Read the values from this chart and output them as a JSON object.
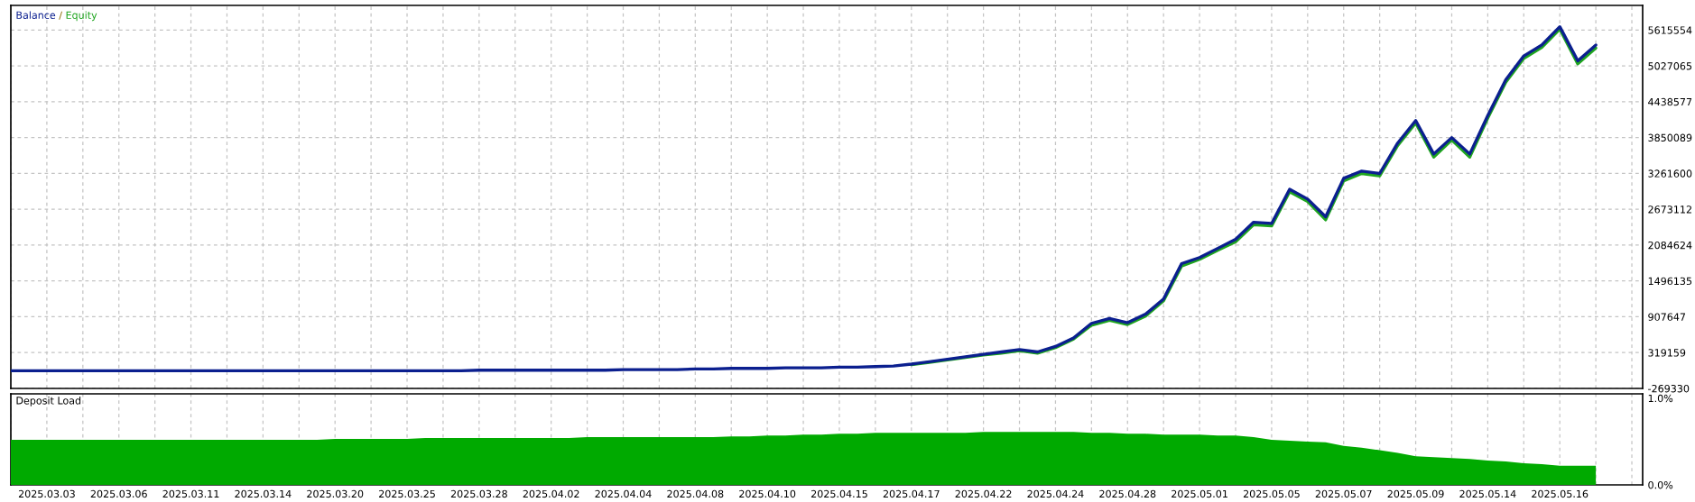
{
  "chart_data": [
    {
      "type": "line",
      "legend": "top left",
      "annotations": [
        "/"
      ],
      "grid": true,
      "tick_labels": "y",
      "categories": [
        null,
        null,
        "2025.03.03",
        null,
        null,
        null,
        "2025.03.06",
        null,
        null,
        null,
        "2025.03.11",
        null,
        null,
        null,
        "2025.03.14",
        null,
        null,
        null,
        "2025.03.20",
        null,
        null,
        null,
        "2025.03.25",
        null,
        null,
        null,
        "2025.03.28",
        null,
        null,
        null,
        "2025.04.02",
        null,
        null,
        null,
        "2025.04.04",
        null,
        null,
        null,
        "2025.04.08",
        null,
        null,
        null,
        "2025.04.10",
        null,
        null,
        null,
        "2025.04.15",
        null,
        null,
        null,
        "2025.04.17",
        null,
        null,
        null,
        "2025.04.22",
        null,
        null,
        null,
        "2025.04.24",
        null,
        null,
        null,
        "2025.04.28",
        null,
        null,
        null,
        "2025.05.01",
        null,
        null,
        null,
        "2025.05.05",
        null,
        null,
        null,
        "2025.05.07",
        null,
        null,
        null,
        "2025.05.09",
        null,
        null,
        null,
        "2025.05.14",
        null,
        null,
        null,
        "2025.05.16",
        null,
        null,
        null
      ],
      "ylim": [
        -269330,
        6020000
      ],
      "yticks": [
        -269330,
        319159,
        907647,
        1496135,
        2084624,
        2673112,
        3261600,
        3850089,
        4438577,
        5027065,
        5615554
      ],
      "series": [
        {
          "name": "Equity",
          "color": "#1fa51f",
          "values": [
            null,
            null,
            null,
            null,
            null,
            null,
            null,
            null,
            null,
            null,
            null,
            null,
            null,
            null,
            null,
            null,
            null,
            null,
            null,
            null,
            null,
            null,
            null,
            null,
            null,
            null,
            null,
            null,
            null,
            null,
            null,
            null,
            null,
            null,
            null,
            null,
            null,
            null,
            null,
            null,
            null,
            null,
            null,
            null,
            null,
            null,
            null,
            null,
            null,
            null,
            120000,
            160000,
            200000,
            240000,
            280000,
            310000,
            350000,
            310000,
            400000,
            540000,
            770000,
            850000,
            780000,
            920000,
            1170000,
            1740000,
            1850000,
            2000000,
            2140000,
            2420000,
            2400000,
            2960000,
            2800000,
            2500000,
            3140000,
            3260000,
            3220000,
            3720000,
            4090000,
            3530000,
            3810000,
            3530000,
            4170000,
            4760000,
            5150000,
            5330000,
            5630000,
            5060000,
            5320000,
            null
          ]
        },
        {
          "name": "Balance",
          "color": "#0b1f8f",
          "values": [
            20000,
            20000,
            20000,
            20000,
            20000,
            20000,
            20000,
            20000,
            20000,
            20000,
            20000,
            20000,
            20000,
            20000,
            20000,
            20000,
            20000,
            20000,
            20000,
            20000,
            20000,
            20000,
            20000,
            20000,
            20000,
            20000,
            30000,
            30000,
            30000,
            30000,
            30000,
            30000,
            30000,
            30000,
            40000,
            40000,
            40000,
            40000,
            50000,
            50000,
            60000,
            60000,
            60000,
            70000,
            70000,
            70000,
            80000,
            80000,
            90000,
            100000,
            130000,
            170000,
            210000,
            250000,
            290000,
            330000,
            370000,
            330000,
            420000,
            560000,
            800000,
            880000,
            810000,
            950000,
            1200000,
            1780000,
            1880000,
            2030000,
            2180000,
            2460000,
            2440000,
            3000000,
            2840000,
            2550000,
            3180000,
            3300000,
            3260000,
            3760000,
            4130000,
            3580000,
            3850000,
            3580000,
            4210000,
            4800000,
            5190000,
            5370000,
            5670000,
            5110000,
            5370000,
            null
          ]
        }
      ]
    },
    {
      "type": "area",
      "title": "Deposit Load",
      "grid": "x",
      "categories": [
        null,
        null,
        "2025.03.03",
        null,
        null,
        null,
        "2025.03.06",
        null,
        null,
        null,
        "2025.03.11",
        null,
        null,
        null,
        "2025.03.14",
        null,
        null,
        null,
        "2025.03.20",
        null,
        null,
        null,
        "2025.03.25",
        null,
        null,
        null,
        "2025.03.28",
        null,
        null,
        null,
        "2025.04.02",
        null,
        null,
        null,
        "2025.04.04",
        null,
        null,
        null,
        "2025.04.08",
        null,
        null,
        null,
        "2025.04.10",
        null,
        null,
        null,
        "2025.04.15",
        null,
        null,
        null,
        "2025.04.17",
        null,
        null,
        null,
        "2025.04.22",
        null,
        null,
        null,
        "2025.04.24",
        null,
        null,
        null,
        "2025.04.28",
        null,
        null,
        null,
        "2025.05.01",
        null,
        null,
        null,
        "2025.05.05",
        null,
        null,
        null,
        "2025.05.07",
        null,
        null,
        null,
        "2025.05.09",
        null,
        null,
        null,
        "2025.05.14",
        null,
        null,
        null,
        "2025.05.16",
        null,
        null,
        null
      ],
      "ylim": [
        0,
        1.05
      ],
      "yticks": [
        {
          "value": 0,
          "label": "0.0%"
        },
        {
          "value": 1,
          "label": "1.0%"
        }
      ],
      "series": [
        {
          "color": "#00aa00",
          "values": [
            0.52,
            0.52,
            0.52,
            0.52,
            0.52,
            0.52,
            0.52,
            0.52,
            0.52,
            0.52,
            0.52,
            0.52,
            0.52,
            0.52,
            0.52,
            0.52,
            0.52,
            0.52,
            0.53,
            0.53,
            0.53,
            0.53,
            0.53,
            0.54,
            0.54,
            0.54,
            0.54,
            0.54,
            0.54,
            0.54,
            0.54,
            0.54,
            0.55,
            0.55,
            0.55,
            0.55,
            0.55,
            0.55,
            0.55,
            0.55,
            0.56,
            0.56,
            0.57,
            0.57,
            0.58,
            0.58,
            0.59,
            0.59,
            0.6,
            0.6,
            0.6,
            0.6,
            0.6,
            0.6,
            0.61,
            0.61,
            0.61,
            0.61,
            0.61,
            0.61,
            0.6,
            0.6,
            0.59,
            0.59,
            0.58,
            0.58,
            0.58,
            0.57,
            0.57,
            0.55,
            0.52,
            0.51,
            0.5,
            0.49,
            0.45,
            0.43,
            0.4,
            0.37,
            0.33,
            0.32,
            0.31,
            0.3,
            0.28,
            0.27,
            0.25,
            0.24,
            0.22,
            0.22,
            0.22,
            null
          ]
        }
      ]
    }
  ]
}
